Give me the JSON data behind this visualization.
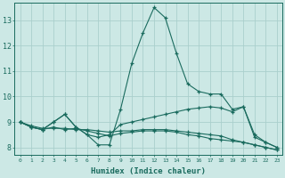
{
  "title": "",
  "xlabel": "Humidex (Indice chaleur)",
  "xlim": [
    -0.5,
    23.5
  ],
  "ylim": [
    7.7,
    13.7
  ],
  "xticks": [
    0,
    1,
    2,
    3,
    4,
    5,
    6,
    7,
    8,
    9,
    10,
    11,
    12,
    13,
    14,
    15,
    16,
    17,
    18,
    19,
    20,
    21,
    22,
    23
  ],
  "yticks": [
    8,
    9,
    10,
    11,
    12,
    13
  ],
  "bg_color": "#cce8e5",
  "line_color": "#1a6b5e",
  "grid_color": "#aacfcc",
  "lines": [
    {
      "x": [
        0,
        1,
        2,
        3,
        4,
        5,
        6,
        7,
        8,
        9,
        10,
        11,
        12,
        13,
        14,
        15,
        16,
        17,
        18,
        19,
        20,
        21,
        22,
        23
      ],
      "y": [
        9.0,
        8.8,
        8.7,
        9.0,
        9.3,
        8.8,
        8.5,
        8.1,
        8.1,
        9.5,
        11.3,
        12.5,
        13.5,
        13.1,
        11.7,
        10.5,
        10.2,
        10.1,
        10.1,
        9.5,
        9.6,
        8.4,
        8.2,
        8.0
      ]
    },
    {
      "x": [
        0,
        1,
        2,
        3,
        4,
        5,
        6,
        7,
        8,
        9,
        10,
        11,
        12,
        13,
        14,
        15,
        16,
        17,
        18,
        19,
        20,
        21,
        22,
        23
      ],
      "y": [
        9.0,
        8.8,
        8.7,
        9.0,
        9.3,
        8.8,
        8.5,
        8.4,
        8.5,
        8.9,
        9.0,
        9.1,
        9.2,
        9.3,
        9.4,
        9.5,
        9.55,
        9.6,
        9.55,
        9.4,
        9.6,
        8.5,
        8.2,
        8.0
      ]
    },
    {
      "x": [
        0,
        1,
        2,
        3,
        4,
        5,
        6,
        7,
        8,
        9,
        10,
        11,
        12,
        13,
        14,
        15,
        16,
        17,
        18,
        19,
        20,
        21,
        22,
        23
      ],
      "y": [
        9.0,
        8.8,
        8.7,
        8.8,
        8.7,
        8.75,
        8.65,
        8.55,
        8.45,
        8.55,
        8.6,
        8.65,
        8.65,
        8.65,
        8.6,
        8.5,
        8.45,
        8.35,
        8.3,
        8.25,
        8.2,
        8.1,
        8.0,
        7.9
      ]
    },
    {
      "x": [
        0,
        1,
        2,
        3,
        4,
        5,
        6,
        7,
        8,
        9,
        10,
        11,
        12,
        13,
        14,
        15,
        16,
        17,
        18,
        19,
        20,
        21,
        22,
        23
      ],
      "y": [
        9.0,
        8.85,
        8.75,
        8.75,
        8.75,
        8.7,
        8.7,
        8.65,
        8.6,
        8.65,
        8.65,
        8.7,
        8.7,
        8.7,
        8.65,
        8.6,
        8.55,
        8.5,
        8.45,
        8.3,
        8.2,
        8.1,
        8.0,
        7.9
      ]
    }
  ]
}
